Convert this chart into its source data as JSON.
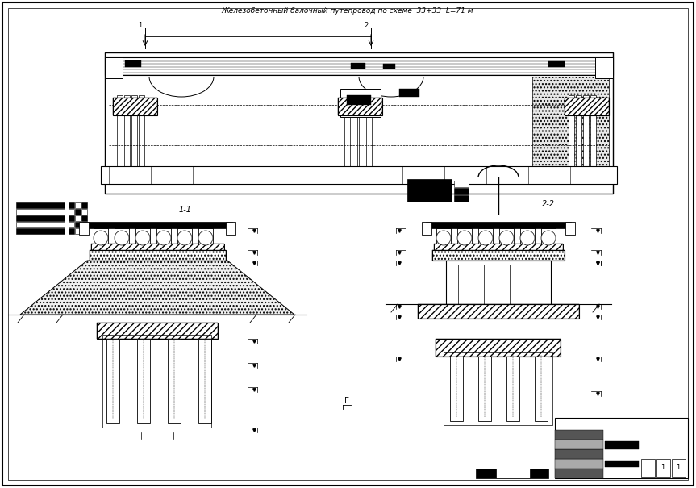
{
  "title": "Железобетонный балочный путепровод по схеме  33+33  L=71 м",
  "bg_color": "#ffffff",
  "label_11": "1-1",
  "label_22": "2-2"
}
